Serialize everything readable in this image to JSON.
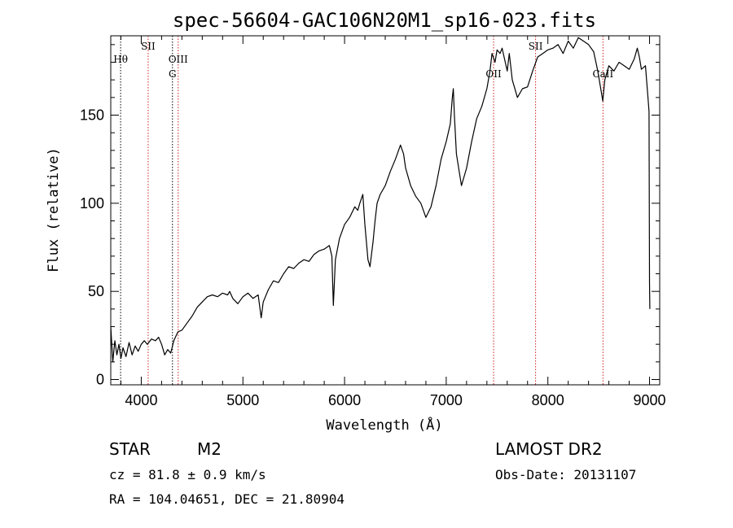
{
  "chart_data": {
    "type": "line",
    "title": "spec-56604-GAC106N20M1_sp16-023.fits",
    "xlabel": "Wavelength (Å)",
    "ylabel": "Flux (relative)",
    "xlim": [
      3700,
      9100
    ],
    "ylim": [
      -3,
      195
    ],
    "xticks": [
      4000,
      5000,
      6000,
      7000,
      8000,
      9000
    ],
    "yticks": [
      0,
      50,
      100,
      150
    ],
    "series": [
      {
        "name": "flux",
        "color": "#000000",
        "points": [
          [
            3700,
            30
          ],
          [
            3720,
            10
          ],
          [
            3740,
            22
          ],
          [
            3760,
            14
          ],
          [
            3780,
            20
          ],
          [
            3800,
            12
          ],
          [
            3820,
            18
          ],
          [
            3850,
            13
          ],
          [
            3880,
            21
          ],
          [
            3910,
            14
          ],
          [
            3940,
            19
          ],
          [
            3970,
            16
          ],
          [
            4000,
            20
          ],
          [
            4030,
            22
          ],
          [
            4060,
            20
          ],
          [
            4100,
            23
          ],
          [
            4140,
            22
          ],
          [
            4170,
            24
          ],
          [
            4200,
            20
          ],
          [
            4230,
            14
          ],
          [
            4260,
            17
          ],
          [
            4290,
            15
          ],
          [
            4320,
            22
          ],
          [
            4360,
            27
          ],
          [
            4400,
            28
          ],
          [
            4450,
            32
          ],
          [
            4500,
            36
          ],
          [
            4550,
            41
          ],
          [
            4600,
            44
          ],
          [
            4650,
            47
          ],
          [
            4700,
            48
          ],
          [
            4750,
            47
          ],
          [
            4800,
            49
          ],
          [
            4850,
            48
          ],
          [
            4870,
            50
          ],
          [
            4900,
            46
          ],
          [
            4950,
            43
          ],
          [
            5000,
            47
          ],
          [
            5050,
            49
          ],
          [
            5100,
            46
          ],
          [
            5150,
            48
          ],
          [
            5180,
            35
          ],
          [
            5200,
            44
          ],
          [
            5250,
            51
          ],
          [
            5300,
            56
          ],
          [
            5350,
            55
          ],
          [
            5400,
            60
          ],
          [
            5450,
            64
          ],
          [
            5500,
            63
          ],
          [
            5550,
            66
          ],
          [
            5600,
            68
          ],
          [
            5650,
            67
          ],
          [
            5700,
            71
          ],
          [
            5750,
            73
          ],
          [
            5800,
            74
          ],
          [
            5850,
            76
          ],
          [
            5875,
            70
          ],
          [
            5890,
            42
          ],
          [
            5910,
            68
          ],
          [
            5950,
            80
          ],
          [
            6000,
            88
          ],
          [
            6050,
            92
          ],
          [
            6100,
            98
          ],
          [
            6130,
            96
          ],
          [
            6150,
            100
          ],
          [
            6180,
            105
          ],
          [
            6200,
            88
          ],
          [
            6230,
            68
          ],
          [
            6250,
            64
          ],
          [
            6280,
            78
          ],
          [
            6300,
            90
          ],
          [
            6320,
            100
          ],
          [
            6350,
            105
          ],
          [
            6400,
            110
          ],
          [
            6450,
            118
          ],
          [
            6500,
            125
          ],
          [
            6550,
            133
          ],
          [
            6580,
            128
          ],
          [
            6600,
            120
          ],
          [
            6650,
            110
          ],
          [
            6700,
            104
          ],
          [
            6750,
            100
          ],
          [
            6800,
            92
          ],
          [
            6850,
            98
          ],
          [
            6900,
            110
          ],
          [
            6950,
            125
          ],
          [
            7000,
            135
          ],
          [
            7040,
            145
          ],
          [
            7060,
            160
          ],
          [
            7070,
            165
          ],
          [
            7080,
            150
          ],
          [
            7100,
            128
          ],
          [
            7150,
            110
          ],
          [
            7200,
            120
          ],
          [
            7250,
            135
          ],
          [
            7300,
            148
          ],
          [
            7350,
            155
          ],
          [
            7400,
            165
          ],
          [
            7430,
            175
          ],
          [
            7450,
            185
          ],
          [
            7480,
            180
          ],
          [
            7500,
            187
          ],
          [
            7530,
            185
          ],
          [
            7550,
            188
          ],
          [
            7600,
            175
          ],
          [
            7620,
            185
          ],
          [
            7650,
            170
          ],
          [
            7700,
            160
          ],
          [
            7750,
            165
          ],
          [
            7800,
            166
          ],
          [
            7850,
            175
          ],
          [
            7900,
            183
          ],
          [
            7950,
            185
          ],
          [
            8000,
            187
          ],
          [
            8050,
            188
          ],
          [
            8100,
            190
          ],
          [
            8150,
            185
          ],
          [
            8200,
            192
          ],
          [
            8250,
            188
          ],
          [
            8300,
            194
          ],
          [
            8350,
            192
          ],
          [
            8400,
            190
          ],
          [
            8450,
            186
          ],
          [
            8480,
            178
          ],
          [
            8500,
            172
          ],
          [
            8540,
            158
          ],
          [
            8560,
            170
          ],
          [
            8600,
            178
          ],
          [
            8650,
            175
          ],
          [
            8700,
            180
          ],
          [
            8750,
            178
          ],
          [
            8800,
            176
          ],
          [
            8850,
            182
          ],
          [
            8880,
            188
          ],
          [
            8900,
            183
          ],
          [
            8920,
            176
          ],
          [
            8960,
            178
          ],
          [
            8985,
            160
          ],
          [
            8995,
            152
          ],
          [
            9000,
            55
          ],
          [
            9003,
            40
          ]
        ]
      }
    ],
    "reference_lines": [
      {
        "x": 3797,
        "color": "#000000",
        "style": "dotted",
        "label": "Hθ",
        "label_row": 2
      },
      {
        "x": 4068,
        "color": "#cc2222",
        "style": "dotted",
        "label": "SII",
        "label_row": 1
      },
      {
        "x": 4307,
        "color": "#000000",
        "style": "dotted",
        "label": "G",
        "label_row": 3
      },
      {
        "x": 4363,
        "color": "#cc2222",
        "style": "dotted",
        "label": "OIII",
        "label_row": 2
      },
      {
        "x": 7466,
        "color": "#cc2222",
        "style": "dotted",
        "label": "OII",
        "label_row": 3
      },
      {
        "x": 7879,
        "color": "#cc2222",
        "style": "dotted",
        "label": "SII",
        "label_row": 1
      },
      {
        "x": 8542,
        "color": "#cc2222",
        "style": "dotted",
        "label": "CaII",
        "label_row": 3
      }
    ]
  },
  "info": {
    "object_class": "STAR",
    "subclass": "M2",
    "cz": "cz = 81.8 ± 0.9 km/s",
    "coords": "RA = 104.04651, DEC =  21.80904",
    "survey": "LAMOST DR2",
    "obs_date": "Obs-Date: 20131107"
  }
}
